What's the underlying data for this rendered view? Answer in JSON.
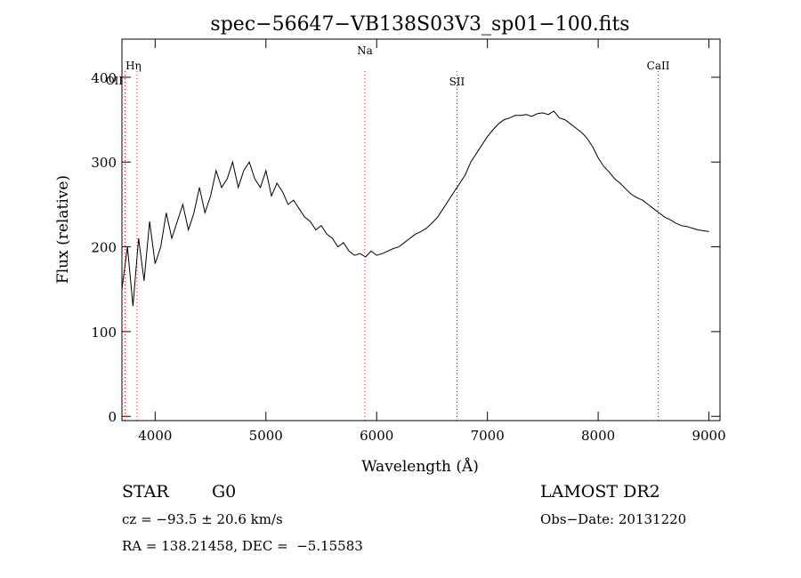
{
  "chart_data": {
    "type": "line",
    "title": "spec−56647−VB138S03V3_sp01−100.fits",
    "xlabel": "Wavelength (Å)",
    "ylabel": "Flux (relative)",
    "xlim": [
      3700,
      9100
    ],
    "ylim": [
      -5,
      445
    ],
    "x_ticks": [
      4000,
      5000,
      6000,
      7000,
      8000,
      9000
    ],
    "x_ticklabels": [
      "4000",
      "5000",
      "6000",
      "7000",
      "8000",
      "9000"
    ],
    "y_ticks": [
      0,
      100,
      200,
      300,
      400
    ],
    "y_ticklabels": [
      "0",
      "100",
      "200",
      "300",
      "400"
    ],
    "grid": false,
    "series": [
      {
        "line_color": "#000000",
        "x": [
          3700,
          3750,
          3800,
          3850,
          3900,
          3950,
          4000,
          4050,
          4100,
          4150,
          4200,
          4250,
          4300,
          4350,
          4400,
          4450,
          4500,
          4550,
          4600,
          4650,
          4700,
          4750,
          4800,
          4850,
          4900,
          4950,
          5000,
          5050,
          5100,
          5150,
          5200,
          5250,
          5300,
          5350,
          5400,
          5450,
          5500,
          5550,
          5600,
          5650,
          5700,
          5750,
          5800,
          5850,
          5900,
          5950,
          6000,
          6050,
          6100,
          6150,
          6200,
          6250,
          6300,
          6350,
          6400,
          6450,
          6500,
          6550,
          6600,
          6650,
          6700,
          6750,
          6800,
          6850,
          6900,
          6950,
          7000,
          7050,
          7100,
          7150,
          7200,
          7250,
          7300,
          7350,
          7400,
          7450,
          7500,
          7550,
          7600,
          7650,
          7700,
          7750,
          7800,
          7850,
          7900,
          7950,
          8000,
          8050,
          8100,
          8150,
          8200,
          8250,
          8300,
          8350,
          8400,
          8450,
          8500,
          8550,
          8600,
          8650,
          8700,
          8750,
          8800,
          8850,
          8900,
          8950,
          9000
        ],
        "y": [
          150,
          200,
          130,
          210,
          160,
          230,
          180,
          200,
          240,
          210,
          230,
          250,
          220,
          240,
          270,
          240,
          260,
          290,
          270,
          280,
          300,
          270,
          290,
          300,
          280,
          270,
          290,
          260,
          275,
          265,
          250,
          255,
          245,
          235,
          230,
          220,
          225,
          215,
          210,
          200,
          205,
          195,
          190,
          192,
          188,
          195,
          190,
          192,
          195,
          198,
          200,
          205,
          210,
          215,
          218,
          222,
          228,
          235,
          245,
          255,
          265,
          275,
          285,
          300,
          310,
          320,
          330,
          338,
          345,
          350,
          352,
          355,
          355,
          356,
          354,
          357,
          358,
          356,
          360,
          352,
          350,
          345,
          340,
          335,
          328,
          318,
          305,
          295,
          288,
          280,
          275,
          268,
          262,
          258,
          255,
          250,
          245,
          240,
          235,
          232,
          228,
          225,
          224,
          222,
          220,
          219,
          218
        ]
      }
    ],
    "lines": [
      {
        "label": "Hη",
        "x": 3836
      },
      {
        "label": "OII",
        "x": 3728
      },
      {
        "label": "Na",
        "x": 5893
      },
      {
        "label": "SII",
        "x": 6725
      },
      {
        "label": "CaII",
        "x": 8542
      }
    ],
    "line_color": "#ff0000"
  },
  "footer": {
    "object_class": "STAR",
    "subclass": "G0",
    "survey": "LAMOST DR2",
    "cz": "cz = −93.5 ± 20.6 km/s",
    "obs_date": "Obs−Date: 20131220",
    "radec": "RA = 138.21458, DEC =  −5.15583"
  }
}
